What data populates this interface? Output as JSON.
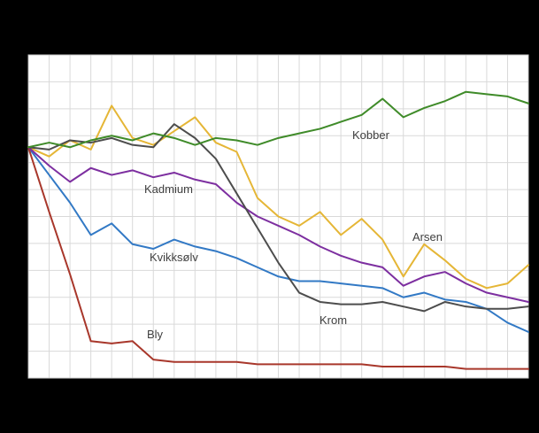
{
  "chart": {
    "frame_background": "#000000",
    "plot_background": "#ffffff",
    "gridline_color": "#d9d9d9",
    "plot_border_color": "#c4c4c4",
    "label_color": "#3f3f3f"
  },
  "chart_data": {
    "type": "line",
    "title": "",
    "xlabel": "",
    "ylabel": "",
    "axis_tick_labels_visible": false,
    "grid": true,
    "legend_position": "inline-labels",
    "ylim": [
      0,
      140
    ],
    "x_gridline_count": 25,
    "y_gridline_count": 13,
    "x": [
      0,
      1,
      2,
      3,
      4,
      5,
      6,
      7,
      8,
      9,
      10,
      11,
      12,
      13,
      14,
      15,
      16,
      17,
      18,
      19,
      20,
      21,
      22,
      23,
      24
    ],
    "series": [
      {
        "name": "Kvikksølv",
        "color": "#3279c5",
        "values": [
          100,
          88,
          76,
          62,
          67,
          58,
          56,
          60,
          57,
          55,
          52,
          48,
          44,
          42,
          42,
          41,
          40,
          39,
          35,
          37,
          34,
          33,
          30,
          24,
          20
        ]
      },
      {
        "name": "Bly",
        "color": "#a8372b",
        "values": [
          100,
          72,
          45,
          16,
          15,
          16,
          8,
          7,
          7,
          7,
          7,
          6,
          6,
          6,
          6,
          6,
          6,
          5,
          5,
          5,
          5,
          4,
          4,
          4,
          4
        ]
      },
      {
        "name": "Arsen",
        "color": "#e5b636",
        "values": [
          100,
          96,
          103,
          99,
          118,
          104,
          101,
          107,
          113,
          102,
          98,
          78,
          70,
          66,
          72,
          62,
          69,
          60,
          44,
          58,
          51,
          43,
          39,
          41,
          49
        ]
      },
      {
        "name": "Kadmium",
        "color": "#7d2fa0",
        "values": [
          100,
          92,
          85,
          91,
          88,
          90,
          87,
          89,
          86,
          84,
          76,
          70,
          66,
          62,
          57,
          53,
          50,
          48,
          40,
          44,
          46,
          41,
          37,
          35,
          33
        ]
      },
      {
        "name": "Krom",
        "color": "#4d4d4d",
        "values": [
          100,
          99,
          103,
          102,
          104,
          101,
          100,
          110,
          104,
          95,
          80,
          65,
          50,
          37,
          33,
          32,
          32,
          33,
          31,
          29,
          33,
          31,
          30,
          30,
          31
        ]
      },
      {
        "name": "Kobber",
        "color": "#3f8b29",
        "values": [
          100,
          102,
          100,
          103,
          105,
          103,
          106,
          104,
          101,
          104,
          103,
          101,
          104,
          106,
          108,
          111,
          114,
          121,
          113,
          117,
          120,
          124,
          123,
          122,
          119
        ]
      }
    ]
  }
}
